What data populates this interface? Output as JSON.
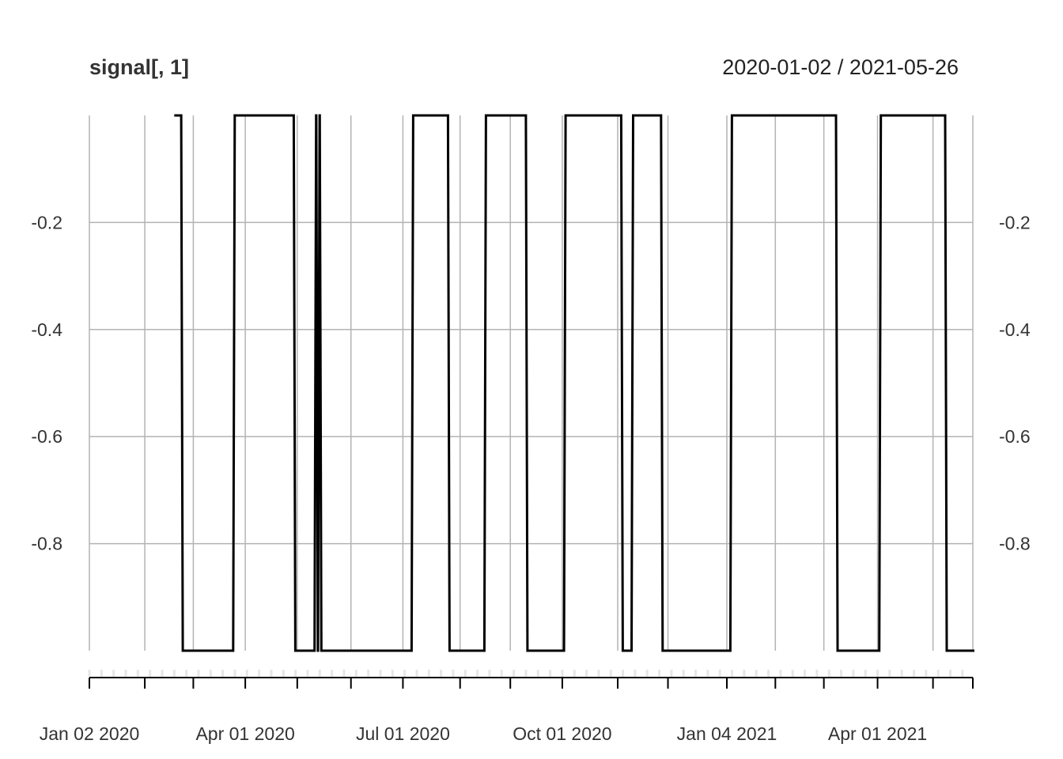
{
  "chart_data": {
    "type": "line",
    "title": "signal[, 1]",
    "date_range_label": "2020-01-02 / 2021-05-26",
    "x_range": [
      "2020-01-02",
      "2021-05-26"
    ],
    "ylim": [
      -1,
      0
    ],
    "y_ticks": [
      -0.2,
      -0.4,
      -0.6,
      -0.8
    ],
    "y_tick_labels": [
      "-0.2",
      "-0.4",
      "-0.6",
      "-0.8"
    ],
    "x_major_ticks": [
      "2020-01-02",
      "2020-04-01",
      "2020-07-01",
      "2020-10-01",
      "2021-01-04",
      "2021-04-01"
    ],
    "x_major_labels": [
      "Jan 02 2020",
      "Apr 01 2020",
      "Jul 01 2020",
      "Oct 01 2020",
      "Jan 04 2021",
      "Apr 01 2021"
    ],
    "x_minor_ticks": [
      "2020-02-03",
      "2020-03-02",
      "2020-05-01",
      "2020-06-01",
      "2020-08-03",
      "2020-09-01",
      "2020-11-02",
      "2020-12-01",
      "2021-02-01",
      "2021-03-01",
      "2021-05-03",
      "2021-05-26"
    ],
    "grid": true,
    "series": [
      {
        "points": [
          [
            "2020-02-20",
            0
          ],
          [
            "2020-02-24",
            -1
          ],
          [
            "2020-03-25",
            0
          ],
          [
            "2020-04-29",
            -1
          ],
          [
            "2020-05-11",
            0
          ],
          [
            "2020-05-12",
            -1
          ],
          [
            "2020-05-13",
            0
          ],
          [
            "2020-05-14",
            -1
          ],
          [
            "2020-07-06",
            0
          ],
          [
            "2020-07-27",
            -1
          ],
          [
            "2020-08-17",
            0
          ],
          [
            "2020-09-10",
            -1
          ],
          [
            "2020-10-02",
            0
          ],
          [
            "2020-11-04",
            -1
          ],
          [
            "2020-11-10",
            0
          ],
          [
            "2020-11-27",
            -1
          ],
          [
            "2021-01-06",
            0
          ],
          [
            "2021-03-08",
            -1
          ],
          [
            "2021-04-02",
            0
          ],
          [
            "2021-05-10",
            -1
          ],
          [
            "2021-05-26",
            -1
          ]
        ]
      }
    ]
  }
}
